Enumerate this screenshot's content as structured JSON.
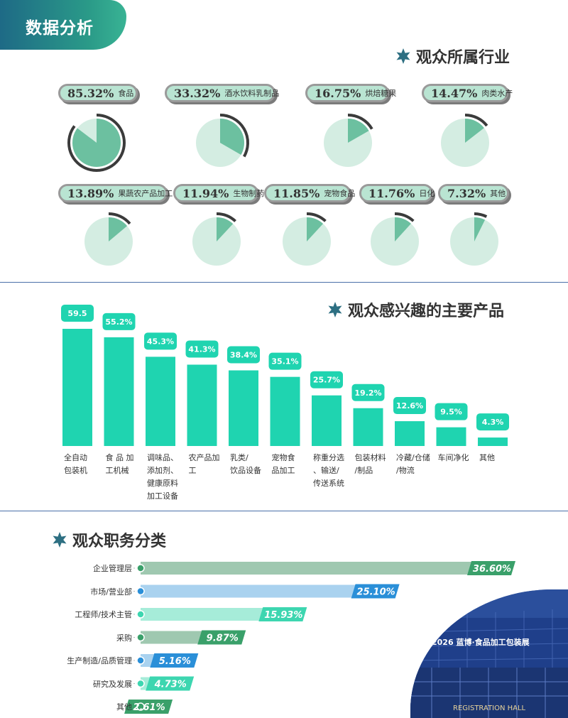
{
  "header": {
    "title": "数据分析"
  },
  "sections": {
    "industry": "观众所属行业",
    "products": "观众感兴趣的主要产品",
    "roles": "观众职务分类"
  },
  "colors": {
    "pie_fill": "#6cc0a0",
    "pie_bg": "#d4ede2",
    "pie_ring": "#3b3b3b",
    "bar": "#1fd4b0",
    "header_grad_start": "#1e6a86",
    "header_grad_end": "#39b394"
  },
  "industry": [
    {
      "pct_label": "85.32%",
      "name": "食品",
      "value": 85.32
    },
    {
      "pct_label": "33.32%",
      "name": "酒水饮料乳制品",
      "value": 33.32
    },
    {
      "pct_label": "16.75%",
      "name": "烘焙糖果",
      "value": 16.75
    },
    {
      "pct_label": "14.47%",
      "name": "肉类水产",
      "value": 14.47
    },
    {
      "pct_label": "13.89%",
      "name": "果蔬农产品加工",
      "value": 13.89
    },
    {
      "pct_label": "11.94%",
      "name": "生物制药",
      "value": 11.94
    },
    {
      "pct_label": "11.85%",
      "name": "宠物食品",
      "value": 11.85
    },
    {
      "pct_label": "11.76%",
      "name": "日化",
      "value": 11.76
    },
    {
      "pct_label": "7.32%",
      "name": "其他",
      "value": 7.32
    }
  ],
  "chart_data": [
    {
      "type": "pie",
      "title": "观众所属行业",
      "categories": [
        "食品",
        "酒水饮料乳制品",
        "烘焙糖果",
        "肉类水产",
        "果蔬农产品加工",
        "生物制药",
        "宠物食品",
        "日化",
        "其他"
      ],
      "values": [
        85.32,
        33.32,
        16.75,
        14.47,
        13.89,
        11.94,
        11.85,
        11.76,
        7.32
      ]
    },
    {
      "type": "bar",
      "title": "观众感兴趣的主要产品",
      "categories": [
        "全自动包装机",
        "食品加工机械",
        "调味品、添加剂、健康原料加工设备",
        "农产品加工",
        "乳类/饮品设备",
        "宠物食品加工",
        "称重分选、输送/传送系统",
        "包装材料/制品",
        "冷藏/仓储/物流",
        "车间净化",
        "其他"
      ],
      "values": [
        59.5,
        55.2,
        45.3,
        41.3,
        38.4,
        35.1,
        25.7,
        19.2,
        12.6,
        9.5,
        4.3
      ],
      "value_labels": [
        "59.5",
        "55.2%",
        "45.3%",
        "41.3%",
        "38.4%",
        "35.1%",
        "25.7%",
        "19.2%",
        "12.6%",
        "9.5%",
        "4.3%"
      ]
    },
    {
      "type": "bar",
      "orientation": "horizontal",
      "title": "观众职务分类",
      "categories": [
        "企业管理层",
        "市场/营业部",
        "工程师/技术主管",
        "采购",
        "生产制造/品质管理",
        "研究及发展",
        "其他"
      ],
      "values": [
        36.6,
        25.1,
        15.93,
        9.87,
        5.16,
        4.73,
        2.61
      ],
      "value_labels": [
        "36.60%",
        "25.10%",
        "15.93%",
        "9.87%",
        "5.16%",
        "4.73%",
        "2.61%"
      ],
      "colors": [
        "#3aa06a",
        "#2a8fd8",
        "#3dd6b0",
        "#3aa06a",
        "#2a8fd8",
        "#3dd6b0",
        "#3aa06a"
      ],
      "track_colors": [
        "#9fc8b0",
        "#a9d2ef",
        "#a6ecd9",
        "#9fc8b0",
        "#a9d2ef",
        "#a6ecd9",
        "#9fc8b0"
      ]
    }
  ],
  "product_labels": [
    [
      "全自动",
      "包装机"
    ],
    [
      "食 品 加",
      "工机械"
    ],
    [
      "调味品、",
      "添加剂、",
      "健康原料",
      "加工设备"
    ],
    [
      "农产品加",
      "工"
    ],
    [
      "乳类/",
      "饮品设备"
    ],
    [
      "宠物食",
      "品加工"
    ],
    [
      "称重分选",
      "、输送/",
      "传送系统"
    ],
    [
      "包装材料",
      "/制品"
    ],
    [
      "冷藏/仓储",
      "/物流"
    ],
    [
      "车间净化"
    ],
    [
      "其他"
    ]
  ],
  "photo": {
    "sign_lines": [
      "2026 蓝博·食品加工包装展",
      "REGISTRATION HALL"
    ],
    "icon": "exhibition-hall-photo"
  }
}
